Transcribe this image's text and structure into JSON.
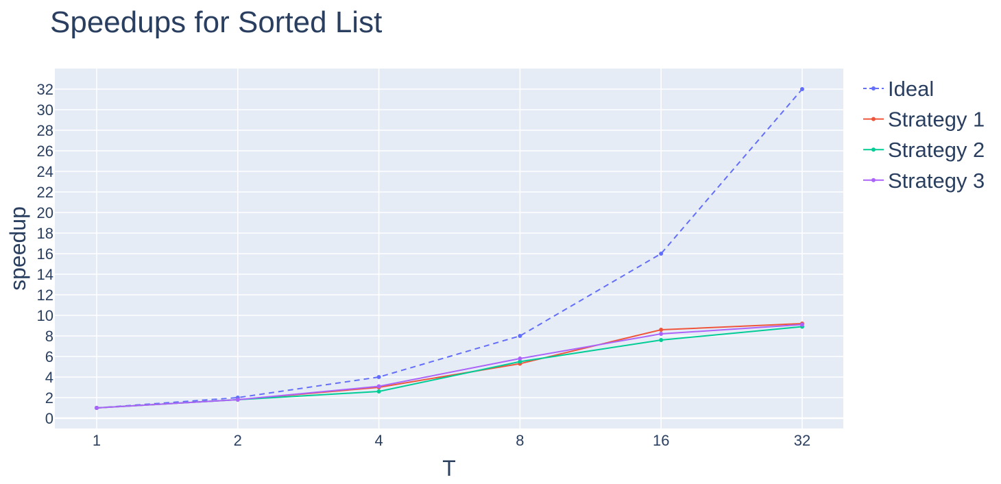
{
  "chart_data": {
    "type": "line",
    "title": "Speedups for Sorted List",
    "xlabel": "T",
    "ylabel": "speedup",
    "x_scale": "log2",
    "x": [
      1,
      2,
      4,
      8,
      16,
      32
    ],
    "x_tick_labels": [
      "1",
      "2",
      "4",
      "8",
      "16",
      "32"
    ],
    "y_ticks": [
      0,
      2,
      4,
      6,
      8,
      10,
      12,
      14,
      16,
      18,
      20,
      22,
      24,
      26,
      28,
      30,
      32
    ],
    "ylim": [
      -1,
      34
    ],
    "grid": true,
    "legend_position": "right",
    "plot_background": "#E5ECF6",
    "series": [
      {
        "name": "Ideal",
        "color": "#636EFA",
        "dash": "dashed",
        "values": [
          1,
          2,
          4,
          8,
          16,
          32
        ]
      },
      {
        "name": "Strategy 1",
        "color": "#EF553B",
        "dash": "solid",
        "values": [
          1,
          1.8,
          3.0,
          5.3,
          8.6,
          9.2
        ]
      },
      {
        "name": "Strategy 2",
        "color": "#00CC96",
        "dash": "solid",
        "values": [
          1,
          1.8,
          2.6,
          5.5,
          7.6,
          8.9
        ]
      },
      {
        "name": "Strategy 3",
        "color": "#AB63FA",
        "dash": "solid",
        "values": [
          1,
          1.8,
          3.1,
          5.8,
          8.2,
          9.1
        ]
      }
    ]
  }
}
